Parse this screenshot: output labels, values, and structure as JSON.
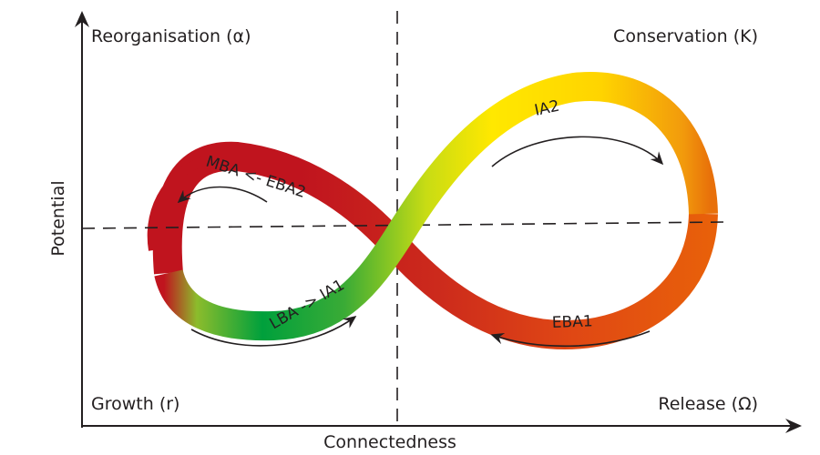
{
  "axes": {
    "x_label": "Connectedness",
    "y_label": "Potential"
  },
  "quadrants": {
    "top_left": "Reorganisation (α)",
    "top_right": "Conservation (K)",
    "bottom_left": "Growth (r)",
    "bottom_right": "Release (Ω)"
  },
  "bands": {
    "ia2": "IA2",
    "mba_eba2": "MBA <- EBA2",
    "lba_ia1": "LBA -> IA1",
    "eba1": "EBA1"
  },
  "colors": {
    "green": "#00a03c",
    "yellow": "#ffe800",
    "orange": "#e8600a",
    "red": "#c0141e",
    "ink": "#231f20"
  }
}
